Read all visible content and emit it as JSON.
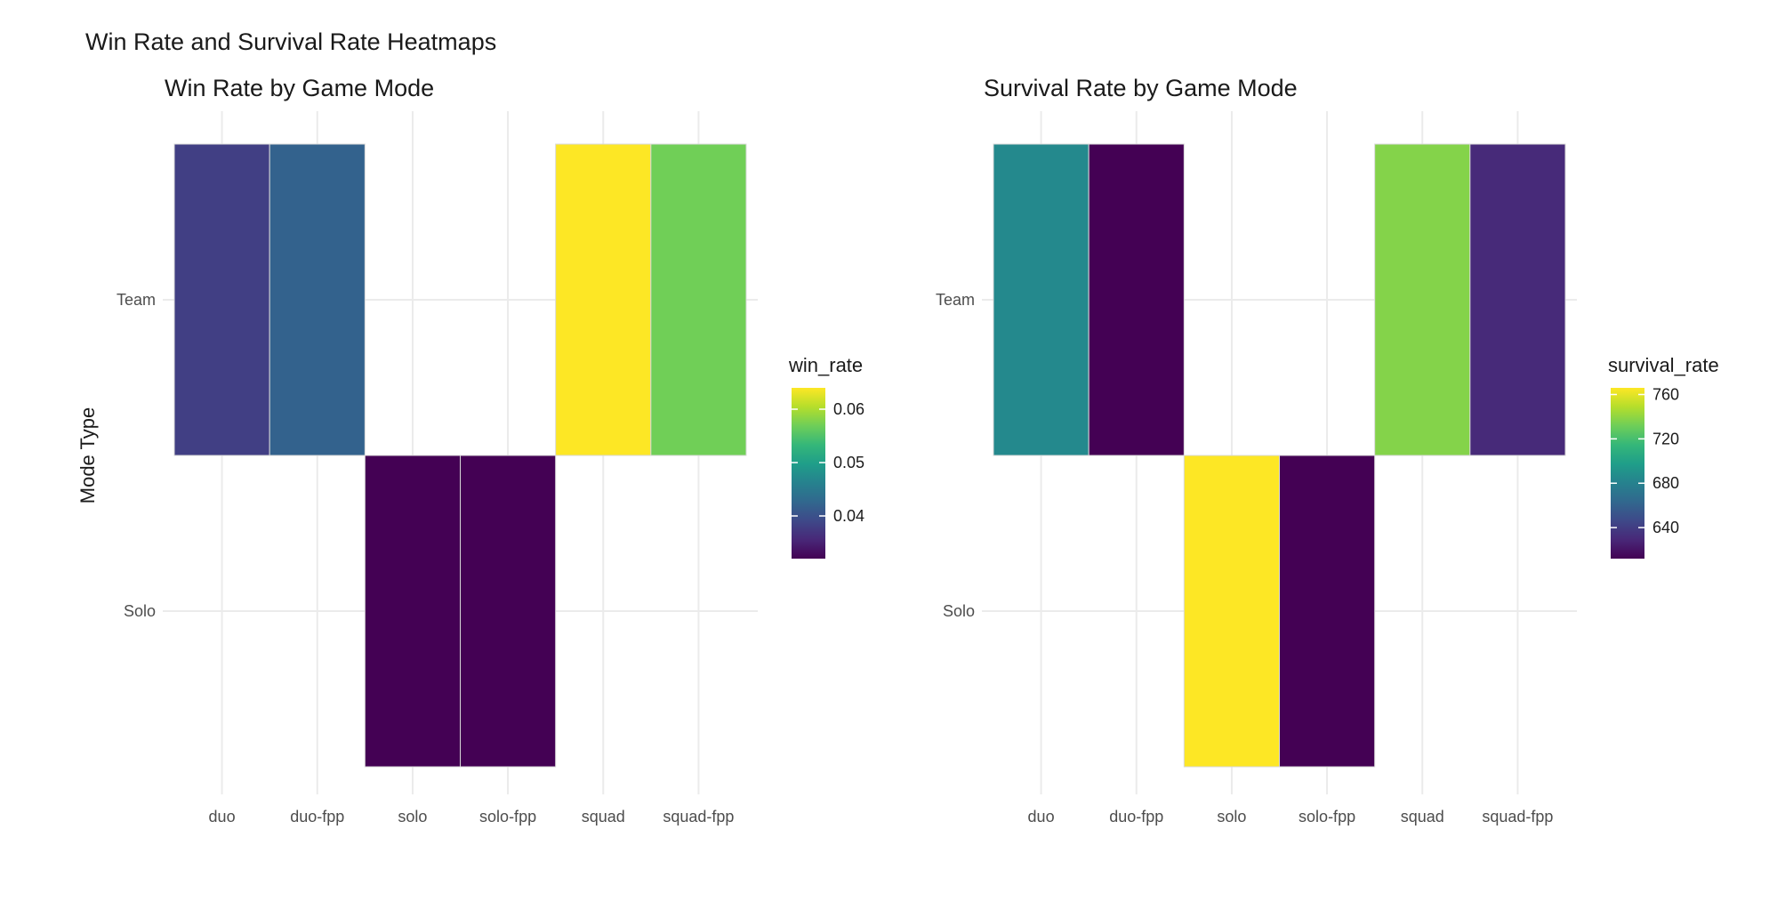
{
  "figure_title": "Win Rate and Survival Rate Heatmaps",
  "chart_data": [
    {
      "type": "heatmap",
      "title": "Win Rate by Game Mode",
      "xlabel": "",
      "ylabel": "Mode Type",
      "x_categories": [
        "duo",
        "duo-fpp",
        "solo",
        "solo-fpp",
        "squad",
        "squad-fpp"
      ],
      "y_categories": [
        "Solo",
        "Team"
      ],
      "cells": [
        {
          "x": "duo",
          "y": "Team",
          "value": 0.038
        },
        {
          "x": "duo-fpp",
          "y": "Team",
          "value": 0.042
        },
        {
          "x": "solo",
          "y": "Solo",
          "value": 0.032
        },
        {
          "x": "solo-fpp",
          "y": "Solo",
          "value": 0.032
        },
        {
          "x": "squad",
          "y": "Team",
          "value": 0.064
        },
        {
          "x": "squad-fpp",
          "y": "Team",
          "value": 0.057
        }
      ],
      "legend": {
        "title": "win_rate",
        "ticks": [
          0.04,
          0.05,
          0.06
        ],
        "tick_labels": [
          "0.04",
          "0.05",
          "0.06"
        ],
        "range": [
          0.032,
          0.064
        ],
        "placement": "right"
      },
      "grid": true
    },
    {
      "type": "heatmap",
      "title": "Survival Rate by Game Mode",
      "xlabel": "",
      "ylabel": "",
      "x_categories": [
        "duo",
        "duo-fpp",
        "solo",
        "solo-fpp",
        "squad",
        "squad-fpp"
      ],
      "y_categories": [
        "Solo",
        "Team"
      ],
      "cells": [
        {
          "x": "duo",
          "y": "Team",
          "value": 685
        },
        {
          "x": "duo-fpp",
          "y": "Team",
          "value": 612
        },
        {
          "x": "solo",
          "y": "Solo",
          "value": 766
        },
        {
          "x": "solo-fpp",
          "y": "Solo",
          "value": 612
        },
        {
          "x": "squad",
          "y": "Team",
          "value": 737
        },
        {
          "x": "squad-fpp",
          "y": "Team",
          "value": 630
        }
      ],
      "legend": {
        "title": "survival_rate",
        "ticks": [
          640,
          680,
          720,
          760
        ],
        "tick_labels": [
          "640",
          "680",
          "720",
          "760"
        ],
        "range": [
          612,
          766
        ],
        "placement": "right"
      },
      "grid": true
    }
  ],
  "colors": {
    "viridis": [
      "#440154",
      "#482878",
      "#3e4989",
      "#31688e",
      "#26828e",
      "#1f9e89",
      "#35b779",
      "#6ece58",
      "#b5de2b",
      "#fde725"
    ],
    "grid": "#ebebeb",
    "text": "#1a1a1a",
    "tick_text": "#4d4d4d"
  }
}
